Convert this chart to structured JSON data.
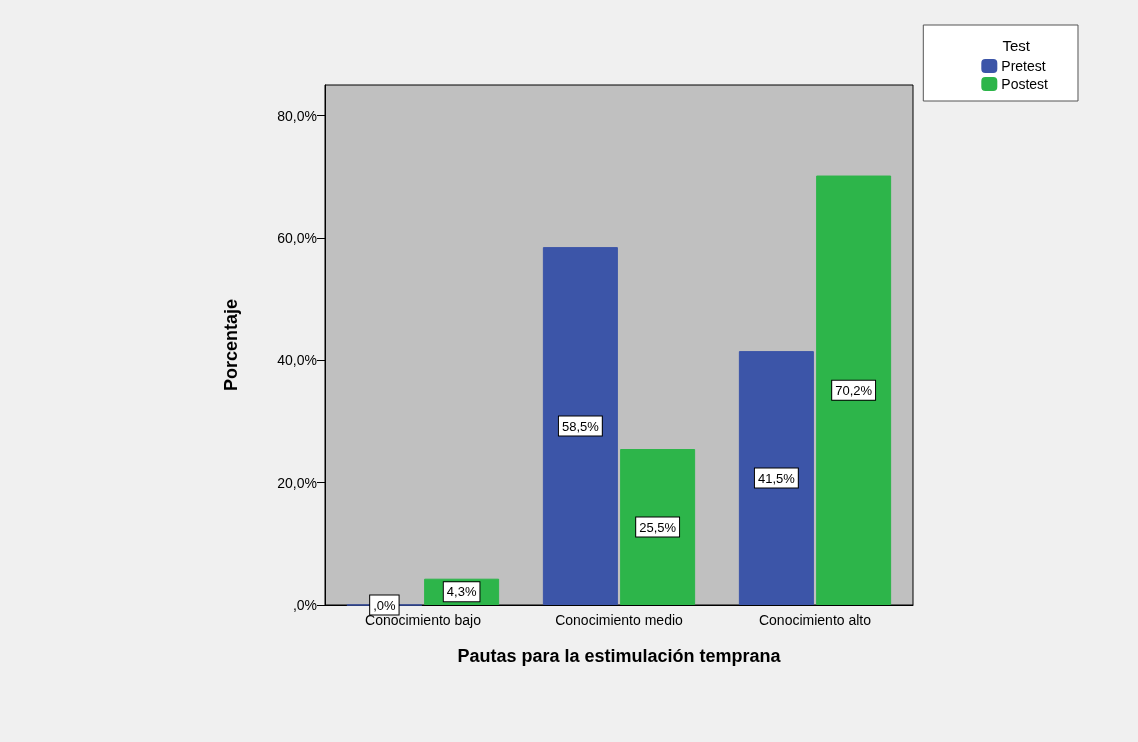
{
  "chart_data": {
    "type": "bar",
    "xlabel": "Pautas para la estimulación temprana",
    "ylabel": "Porcentaje",
    "legend_title": "Test",
    "categories": [
      "Conocimiento bajo",
      "Conocimiento medio",
      "Conocimiento alto"
    ],
    "series": [
      {
        "name": "Pretest",
        "color": "#3c55a8",
        "values": [
          0,
          58.5,
          41.5
        ],
        "value_labels": [
          ",0%",
          "58,5%",
          "41,5%"
        ]
      },
      {
        "name": "Postest",
        "color": "#2db54a",
        "values": [
          4.3,
          25.5,
          70.2
        ],
        "value_labels": [
          "4,3%",
          "25,5%",
          "70,2%"
        ]
      }
    ],
    "ylim": [
      0,
      85
    ],
    "yticks": [
      {
        "value": 0,
        "label": ",0%"
      },
      {
        "value": 20,
        "label": "20,0%"
      },
      {
        "value": 40,
        "label": "40,0%"
      },
      {
        "value": 60,
        "label": "60,0%"
      },
      {
        "value": 80,
        "label": "80,0%"
      }
    ],
    "grid": false,
    "legend": "top right"
  }
}
